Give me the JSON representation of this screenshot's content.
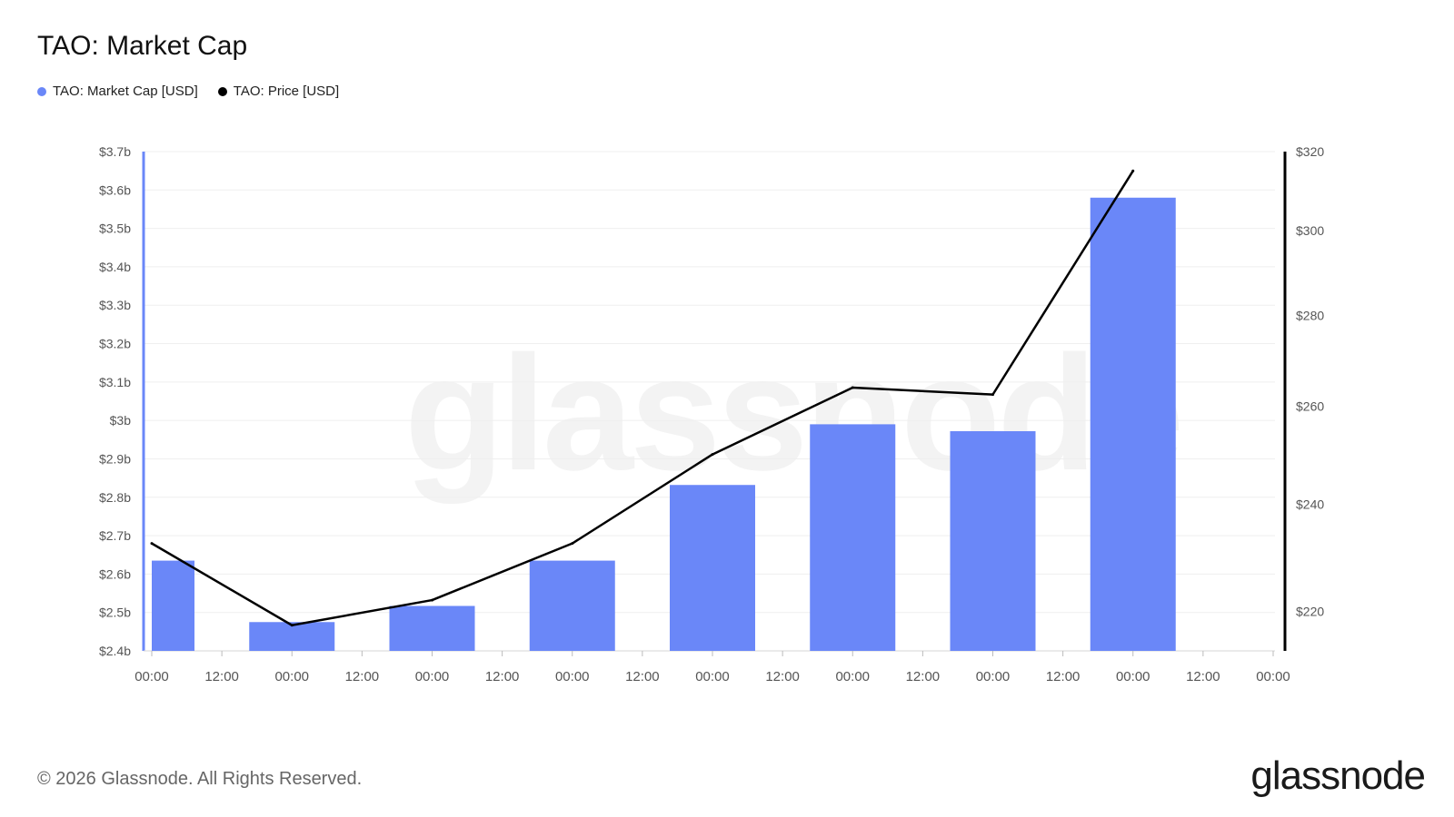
{
  "header": {
    "title": "TAO: Market Cap"
  },
  "legend": [
    {
      "label": "TAO: Market Cap [USD]",
      "color": "#6a87f8"
    },
    {
      "label": "TAO: Price [USD]",
      "color": "#000000"
    }
  ],
  "watermark": "glassnode",
  "footer": {
    "copyright": "© 2026 Glassnode. All Rights Reserved.",
    "brand": "glassnode"
  },
  "chart_data": {
    "type": "bar",
    "title": "TAO: Market Cap",
    "x_ticks": [
      "00:00",
      "12:00",
      "00:00",
      "12:00",
      "00:00",
      "12:00",
      "00:00",
      "12:00",
      "00:00",
      "12:00",
      "00:00",
      "12:00",
      "00:00",
      "12:00",
      "00:00",
      "12:00",
      "00:00"
    ],
    "bar_x_ticks": [
      0,
      2,
      4,
      6,
      8,
      10,
      12,
      14
    ],
    "series": [
      {
        "name": "TAO: Market Cap [USD]",
        "type": "bar",
        "axis": "left",
        "color": "#6a87f8",
        "values": [
          2.635,
          2.475,
          2.517,
          2.635,
          2.832,
          2.99,
          2.972,
          3.58
        ]
      },
      {
        "name": "TAO: Price [USD]",
        "type": "line",
        "axis": "right",
        "color": "#000000",
        "values": [
          232.5,
          217.5,
          222,
          232.5,
          250,
          264,
          262.5,
          315
        ]
      }
    ],
    "y_left": {
      "ylim": [
        2.4,
        3.7
      ],
      "ticks": [
        2.4,
        2.5,
        2.6,
        2.7,
        2.8,
        2.9,
        3.0,
        3.1,
        3.2,
        3.3,
        3.4,
        3.5,
        3.6,
        3.7
      ],
      "tick_labels": [
        "$2.4b",
        "$2.5b",
        "$2.6b",
        "$2.7b",
        "$2.8b",
        "$2.9b",
        "$3b",
        "$3.1b",
        "$3.2b",
        "$3.3b",
        "$3.4b",
        "$3.5b",
        "$3.6b",
        "$3.7b"
      ]
    },
    "y_right": {
      "scale": "log",
      "ylim": [
        213,
        320
      ],
      "ticks": [
        220,
        240,
        260,
        280,
        300,
        320
      ],
      "tick_labels": [
        "$220",
        "$240",
        "$260",
        "$280",
        "$300",
        "$320"
      ]
    },
    "grid": true
  }
}
